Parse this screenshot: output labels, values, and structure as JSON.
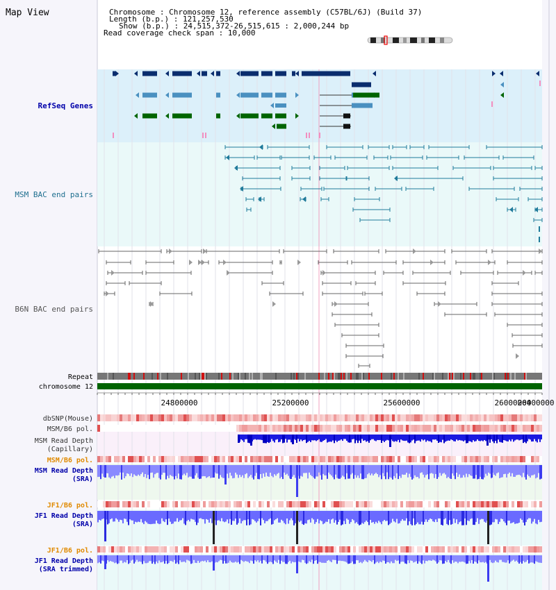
{
  "header": {
    "map_title": "Map View",
    "chromosome_line": "Chromosome     : Chromosome 12, reference assembly (C57BL/6J) (Build 37)",
    "length_line": "Length (b.p.) : 121,257,530",
    "show_line": "Show (b.p.) : 24,515,372-26,515,615 : 2,000,244 bp",
    "coverage_line": "Read coverage check span : 10,000"
  },
  "track_labels": {
    "refseq": "RefSeq Genes",
    "msm_bac": "MSM BAC end pairs",
    "b6n_bac": "B6N BAC end pairs",
    "repeat": "Repeat",
    "chromosome": "chromosome 12",
    "dbsnp": "dbSNP(Mouse)",
    "msm_b6_pol_1": "MSM/B6 pol.",
    "msm_depth_cap_1": "MSM Read Depth",
    "msm_depth_cap_2": "(Capillary)",
    "msm_b6_pol_2": "MSM/B6 pol.",
    "msm_depth_sra_1": "MSM Read Depth",
    "msm_depth_sra_2": "(SRA)",
    "jf1_b6_pol_1": "JF1/B6 pol.",
    "jf1_depth_sra_1": "JF1 Read Depth",
    "jf1_depth_sra_2": "(SRA)",
    "jf1_b6_pol_2": "JF1/B6 pol.",
    "jf1_depth_trim_1": "JF1 Read Depth",
    "jf1_depth_trim_2": "(SRA trimmed)"
  },
  "axis": {
    "ticks": [
      "24800000",
      "25200000",
      "25600000",
      "26000000",
      "26400000"
    ]
  },
  "colors": {
    "refseq_bg": "#dcf0fa",
    "bac_bg": "#eaf9f9",
    "gene_navy": "#0a2d6e",
    "gene_blue": "#4a90c0",
    "gene_green": "#006400",
    "msm_bac": "#1f7a9a",
    "b6n_bac": "#666666",
    "chromosome": "#006400",
    "depth_blue": "#1010e0",
    "depth_soft": "#8080ff",
    "orange_label": "#e08a00",
    "navy_label": "#0000aa",
    "black_label": "#333333"
  }
}
